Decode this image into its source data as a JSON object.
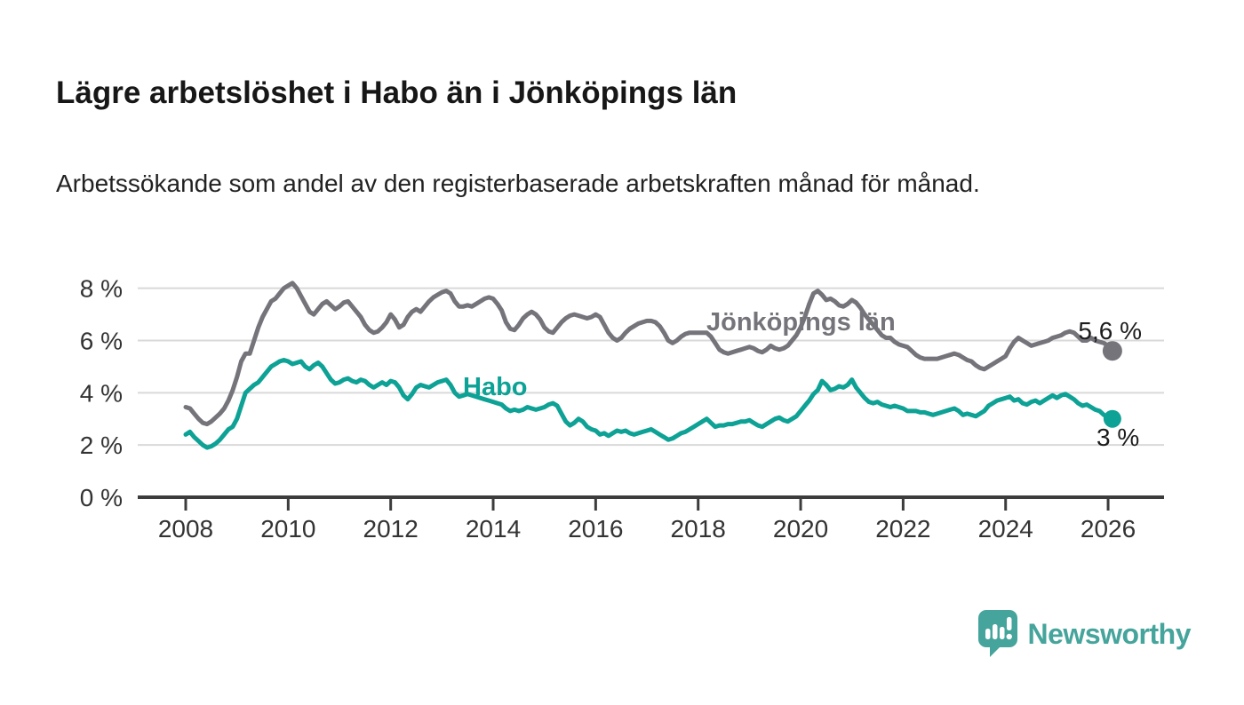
{
  "header": {
    "title": "Lägre arbetslöshet i Habo än i Jönköpings län",
    "subtitle": "Arbetssökande som andel av den registerbaserade arbetskraften månad för månad."
  },
  "chart_data": {
    "type": "line",
    "unit": "%",
    "x_start": "2008-01",
    "x_end": "2026-02",
    "x_frequency": "monthly",
    "x_tick_years": [
      2008,
      2010,
      2012,
      2014,
      2016,
      2018,
      2020,
      2022,
      2024,
      2026
    ],
    "y_ticks": [
      {
        "value": 0,
        "label": "0 %"
      },
      {
        "value": 2,
        "label": "2 %"
      },
      {
        "value": 4,
        "label": "4 %"
      },
      {
        "value": 6,
        "label": "6 %"
      },
      {
        "value": 8,
        "label": "8 %"
      }
    ],
    "ylim": [
      0,
      8.6
    ],
    "grid": "horizontal",
    "legend_position": "inline-labels",
    "axis_color": "#3c3c3c",
    "grid_color": "#d9d9d9",
    "tick_label_color": "#333333",
    "series": [
      {
        "name": "Jönköpings län",
        "color": "#74747a",
        "end_label": "5,6 %",
        "latest_value": 5.6,
        "values": [
          3.45,
          3.4,
          3.2,
          3.0,
          2.85,
          2.8,
          2.9,
          3.05,
          3.2,
          3.4,
          3.7,
          4.1,
          4.6,
          5.2,
          5.5,
          5.5,
          6.0,
          6.5,
          6.9,
          7.2,
          7.5,
          7.6,
          7.8,
          8.0,
          8.1,
          8.2,
          8.0,
          7.7,
          7.4,
          7.1,
          7.0,
          7.2,
          7.4,
          7.5,
          7.35,
          7.2,
          7.3,
          7.45,
          7.5,
          7.3,
          7.1,
          6.9,
          6.6,
          6.4,
          6.3,
          6.35,
          6.5,
          6.7,
          7.0,
          6.8,
          6.5,
          6.6,
          6.9,
          7.1,
          7.2,
          7.1,
          7.3,
          7.5,
          7.65,
          7.75,
          7.85,
          7.9,
          7.8,
          7.5,
          7.3,
          7.3,
          7.35,
          7.3,
          7.4,
          7.5,
          7.6,
          7.65,
          7.6,
          7.4,
          7.15,
          6.7,
          6.45,
          6.4,
          6.6,
          6.85,
          7.0,
          7.1,
          7.0,
          6.8,
          6.5,
          6.35,
          6.3,
          6.5,
          6.7,
          6.85,
          6.95,
          7.0,
          6.95,
          6.9,
          6.85,
          6.9,
          7.0,
          6.9,
          6.6,
          6.3,
          6.1,
          6.0,
          6.1,
          6.3,
          6.45,
          6.55,
          6.65,
          6.7,
          6.75,
          6.75,
          6.7,
          6.55,
          6.3,
          6.0,
          5.9,
          6.0,
          6.15,
          6.25,
          6.3,
          6.3,
          6.3,
          6.3,
          6.3,
          6.15,
          5.9,
          5.65,
          5.55,
          5.5,
          5.55,
          5.6,
          5.65,
          5.7,
          5.75,
          5.7,
          5.6,
          5.55,
          5.65,
          5.8,
          5.7,
          5.65,
          5.7,
          5.8,
          6.0,
          6.2,
          6.5,
          6.9,
          7.4,
          7.8,
          7.9,
          7.75,
          7.55,
          7.6,
          7.5,
          7.35,
          7.3,
          7.4,
          7.55,
          7.45,
          7.25,
          7.0,
          6.8,
          6.6,
          6.4,
          6.2,
          6.1,
          6.1,
          5.95,
          5.85,
          5.8,
          5.75,
          5.6,
          5.45,
          5.35,
          5.3,
          5.3,
          5.3,
          5.3,
          5.35,
          5.4,
          5.45,
          5.5,
          5.45,
          5.35,
          5.25,
          5.2,
          5.05,
          4.95,
          4.9,
          5.0,
          5.1,
          5.2,
          5.3,
          5.4,
          5.7,
          5.95,
          6.1,
          6.0,
          5.9,
          5.8,
          5.85,
          5.9,
          5.95,
          6.0,
          6.1,
          6.15,
          6.2,
          6.3,
          6.35,
          6.3,
          6.15,
          6.0,
          6.0,
          6.1,
          6.0,
          5.95,
          5.9,
          5.8,
          5.6
        ]
      },
      {
        "name": "Habo",
        "color": "#0da295",
        "end_label": "3 %",
        "latest_value": 3.0,
        "values": [
          2.4,
          2.5,
          2.3,
          2.15,
          2.0,
          1.9,
          1.95,
          2.05,
          2.2,
          2.4,
          2.6,
          2.7,
          3.0,
          3.5,
          4.0,
          4.15,
          4.3,
          4.4,
          4.6,
          4.8,
          5.0,
          5.1,
          5.2,
          5.25,
          5.2,
          5.1,
          5.15,
          5.2,
          5.0,
          4.9,
          5.05,
          5.15,
          5.0,
          4.75,
          4.5,
          4.35,
          4.4,
          4.5,
          4.55,
          4.45,
          4.4,
          4.5,
          4.45,
          4.3,
          4.2,
          4.3,
          4.4,
          4.3,
          4.45,
          4.4,
          4.2,
          3.9,
          3.75,
          3.95,
          4.2,
          4.3,
          4.25,
          4.2,
          4.3,
          4.4,
          4.45,
          4.5,
          4.3,
          4.0,
          3.85,
          3.9,
          3.95,
          3.9,
          3.85,
          3.8,
          3.75,
          3.7,
          3.65,
          3.6,
          3.55,
          3.4,
          3.3,
          3.35,
          3.3,
          3.35,
          3.45,
          3.4,
          3.35,
          3.4,
          3.45,
          3.55,
          3.6,
          3.5,
          3.2,
          2.9,
          2.75,
          2.85,
          3.0,
          2.9,
          2.7,
          2.6,
          2.55,
          2.4,
          2.45,
          2.35,
          2.45,
          2.55,
          2.5,
          2.55,
          2.45,
          2.4,
          2.45,
          2.5,
          2.55,
          2.6,
          2.5,
          2.4,
          2.3,
          2.2,
          2.25,
          2.35,
          2.45,
          2.5,
          2.6,
          2.7,
          2.8,
          2.9,
          3.0,
          2.85,
          2.7,
          2.75,
          2.75,
          2.8,
          2.8,
          2.85,
          2.9,
          2.9,
          2.95,
          2.85,
          2.75,
          2.7,
          2.8,
          2.9,
          3.0,
          3.05,
          2.95,
          2.9,
          3.0,
          3.1,
          3.3,
          3.5,
          3.7,
          3.95,
          4.1,
          4.45,
          4.3,
          4.1,
          4.15,
          4.25,
          4.2,
          4.3,
          4.5,
          4.2,
          4.0,
          3.8,
          3.65,
          3.6,
          3.65,
          3.55,
          3.5,
          3.45,
          3.5,
          3.45,
          3.4,
          3.3,
          3.3,
          3.3,
          3.25,
          3.25,
          3.2,
          3.15,
          3.2,
          3.25,
          3.3,
          3.35,
          3.4,
          3.3,
          3.15,
          3.2,
          3.15,
          3.1,
          3.2,
          3.3,
          3.5,
          3.6,
          3.7,
          3.75,
          3.8,
          3.85,
          3.7,
          3.75,
          3.6,
          3.55,
          3.65,
          3.7,
          3.6,
          3.7,
          3.8,
          3.9,
          3.8,
          3.9,
          3.95,
          3.85,
          3.75,
          3.6,
          3.5,
          3.55,
          3.45,
          3.35,
          3.3,
          3.15,
          3.05,
          3.0
        ]
      }
    ]
  },
  "footer": {
    "brand": "Newsworthy",
    "logo_color": "#45a49b"
  }
}
